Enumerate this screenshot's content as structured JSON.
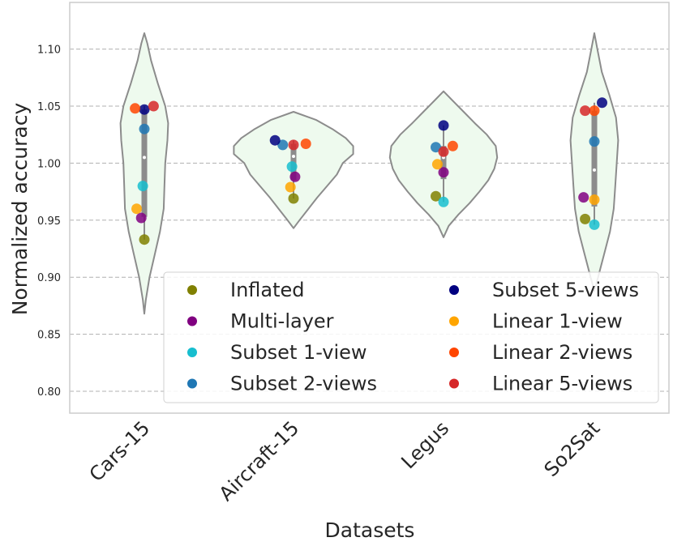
{
  "chart_data": {
    "type": "violin",
    "xlabel": "Datasets",
    "ylabel": "Normalized accuracy",
    "ylim": [
      0.775,
      1.14
    ],
    "yticks": [
      "0.80",
      "0.85",
      "0.90",
      "0.95",
      "1.00",
      "1.05",
      "1.10"
    ],
    "ytick_values": [
      0.8,
      0.85,
      0.9,
      0.95,
      1.0,
      1.05,
      1.1
    ],
    "categories": [
      "Cars-15",
      "Aircraft-15",
      "Legus",
      "So2Sat"
    ],
    "grid": "horizontal dashed",
    "legend_position": "lower right",
    "colors": {
      "violin_fill": "#eefaee",
      "violin_edge": "#8c8c8c",
      "box": "#8c8c8c",
      "grid": "#b0b0b0",
      "frame": "#cccccc"
    },
    "series": [
      {
        "name": "Inflated",
        "color": "#808000",
        "values": [
          0.933,
          0.969,
          0.971,
          0.951
        ]
      },
      {
        "name": "Multi-layer",
        "color": "#800080",
        "values": [
          0.952,
          0.988,
          0.992,
          0.97
        ]
      },
      {
        "name": "Subset 1-view",
        "color": "#17becf",
        "values": [
          0.98,
          0.997,
          0.966,
          0.946
        ]
      },
      {
        "name": "Subset 2-views",
        "color": "#1f77b4",
        "values": [
          1.03,
          1.016,
          1.014,
          1.019
        ]
      },
      {
        "name": "Subset 5-views",
        "color": "#000080",
        "values": [
          1.047,
          1.02,
          1.033,
          1.053
        ]
      },
      {
        "name": "Linear 1-view",
        "color": "#ffa500",
        "values": [
          0.96,
          0.979,
          0.999,
          0.968
        ]
      },
      {
        "name": "Linear 2-views",
        "color": "#ff4500",
        "values": [
          1.048,
          1.017,
          1.015,
          1.046
        ]
      },
      {
        "name": "Linear 5-views",
        "color": "#d62728",
        "values": [
          1.05,
          1.016,
          1.01,
          1.046
        ]
      }
    ],
    "violins": [
      {
        "ymin": 0.868,
        "ymax": 1.114,
        "q1": 0.953,
        "median": 1.005,
        "q3": 1.047,
        "wlow": 0.933,
        "whigh": 1.05,
        "profile": [
          [
            0.868,
            0
          ],
          [
            0.88,
            0.02
          ],
          [
            0.9,
            0.07
          ],
          [
            0.92,
            0.14
          ],
          [
            0.94,
            0.21
          ],
          [
            0.96,
            0.26
          ],
          [
            0.98,
            0.27
          ],
          [
            1.0,
            0.28
          ],
          [
            1.02,
            0.31
          ],
          [
            1.035,
            0.32
          ],
          [
            1.05,
            0.28
          ],
          [
            1.07,
            0.18
          ],
          [
            1.09,
            0.09
          ],
          [
            1.105,
            0.04
          ],
          [
            1.114,
            0
          ]
        ]
      },
      {
        "ymin": 0.943,
        "ymax": 1.045,
        "q1": 0.985,
        "median": 1.006,
        "q3": 1.017,
        "wlow": 0.969,
        "whigh": 1.02,
        "profile": [
          [
            0.943,
            0
          ],
          [
            0.95,
            0.08
          ],
          [
            0.96,
            0.2
          ],
          [
            0.97,
            0.32
          ],
          [
            0.98,
            0.45
          ],
          [
            0.99,
            0.58
          ],
          [
            1.0,
            0.66
          ],
          [
            1.008,
            0.8
          ],
          [
            1.015,
            0.8
          ],
          [
            1.022,
            0.7
          ],
          [
            1.03,
            0.52
          ],
          [
            1.038,
            0.3
          ],
          [
            1.045,
            0
          ]
        ]
      },
      {
        "ymin": 0.935,
        "ymax": 1.063,
        "q1": 0.986,
        "median": 1.005,
        "q3": 1.015,
        "wlow": 0.966,
        "whigh": 1.033,
        "profile": [
          [
            0.935,
            0
          ],
          [
            0.945,
            0.07
          ],
          [
            0.955,
            0.2
          ],
          [
            0.965,
            0.35
          ],
          [
            0.975,
            0.48
          ],
          [
            0.985,
            0.6
          ],
          [
            0.995,
            0.68
          ],
          [
            1.005,
            0.72
          ],
          [
            1.015,
            0.7
          ],
          [
            1.025,
            0.58
          ],
          [
            1.035,
            0.42
          ],
          [
            1.045,
            0.27
          ],
          [
            1.055,
            0.12
          ],
          [
            1.063,
            0
          ]
        ]
      },
      {
        "ymin": 0.888,
        "ymax": 1.114,
        "q1": 0.962,
        "median": 0.994,
        "q3": 1.046,
        "wlow": 0.946,
        "whigh": 1.053,
        "profile": [
          [
            0.888,
            0
          ],
          [
            0.9,
            0.05
          ],
          [
            0.92,
            0.13
          ],
          [
            0.94,
            0.21
          ],
          [
            0.96,
            0.26
          ],
          [
            0.98,
            0.28
          ],
          [
            1.0,
            0.3
          ],
          [
            1.02,
            0.32
          ],
          [
            1.04,
            0.29
          ],
          [
            1.06,
            0.2
          ],
          [
            1.08,
            0.1
          ],
          [
            1.1,
            0.04
          ],
          [
            1.114,
            0
          ]
        ]
      }
    ],
    "jitter": [
      [
        0.0,
        -0.1,
        -0.05,
        0.0,
        0.0,
        -0.25,
        -0.3,
        0.3
      ],
      [
        0.0,
        0.05,
        -0.05,
        -0.35,
        -0.6,
        -0.1,
        0.4,
        0.0
      ],
      [
        -0.25,
        0.0,
        0.0,
        -0.25,
        0.0,
        -0.2,
        0.3,
        0.0
      ],
      [
        -0.3,
        -0.35,
        0.0,
        0.0,
        0.25,
        0.0,
        0.0,
        -0.3
      ]
    ]
  }
}
